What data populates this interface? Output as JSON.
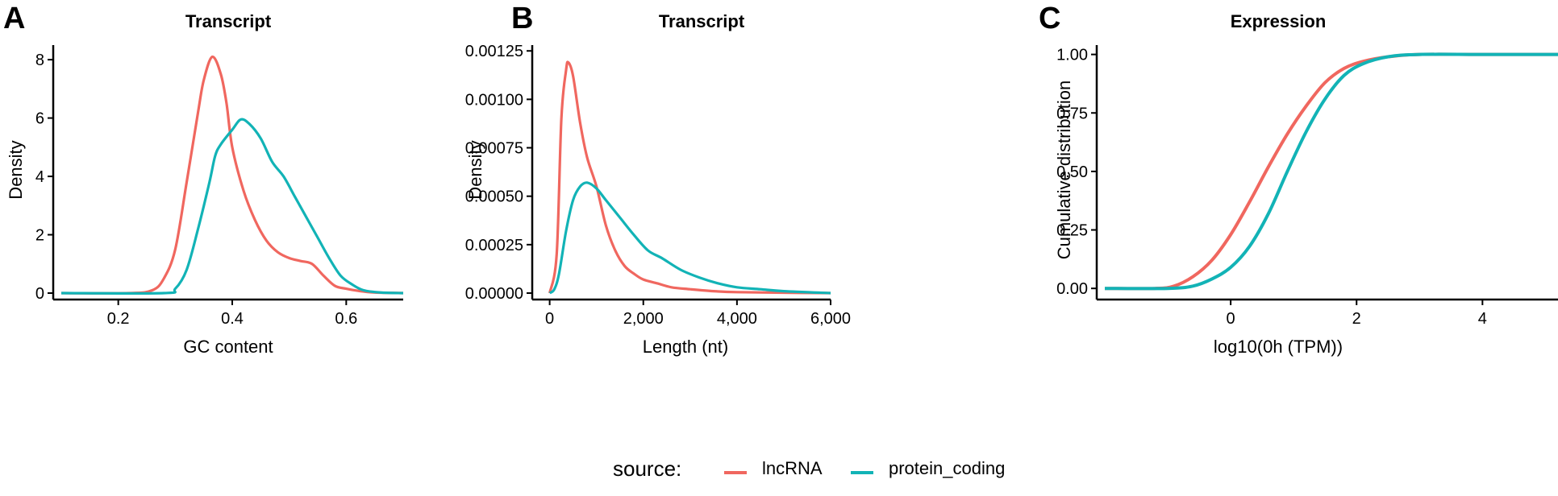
{
  "colors": {
    "lncRNA": "#F0675F",
    "protein_coding": "#12B3B6",
    "axis": "#000000"
  },
  "panels": [
    {
      "letter": "A",
      "title": "Transcript",
      "xlabel": "GC content",
      "ylabel": "Density",
      "xticks": [
        "0.2",
        "0.4",
        "0.6"
      ],
      "yticks": [
        "0",
        "2",
        "4",
        "6",
        "8"
      ]
    },
    {
      "letter": "B",
      "title": "Transcript",
      "xlabel": "Length (nt)",
      "ylabel": "Density",
      "xticks": [
        "0",
        "2,000",
        "4,000",
        "6,000"
      ],
      "yticks": [
        "0.00000",
        "0.00025",
        "0.00050",
        "0.00075",
        "0.00100",
        "0.00125"
      ]
    },
    {
      "letter": "C",
      "title": "Expression",
      "xlabel": "log10(0h (TPM))",
      "ylabel": "Cumulative distribution",
      "xticks": [
        "0",
        "2",
        "4"
      ],
      "yticks": [
        "0.00",
        "0.25",
        "0.50",
        "0.75",
        "1.00"
      ]
    }
  ],
  "legend": {
    "title": "source:",
    "items": [
      {
        "label": "lncRNA"
      },
      {
        "label": "protein_coding"
      }
    ]
  },
  "chart_data": [
    {
      "type": "line",
      "title": "Transcript",
      "xlabel": "GC content",
      "ylabel": "Density",
      "xlim": [
        0.1,
        0.7
      ],
      "ylim": [
        0,
        8.5
      ],
      "xticks": [
        0.2,
        0.4,
        0.6
      ],
      "yticks": [
        0,
        2,
        4,
        6,
        8
      ],
      "grid": false,
      "legend_position": "bottom",
      "series": [
        {
          "name": "lncRNA",
          "x": [
            0.1,
            0.22,
            0.26,
            0.28,
            0.3,
            0.32,
            0.34,
            0.35,
            0.365,
            0.38,
            0.39,
            0.4,
            0.42,
            0.44,
            0.46,
            0.48,
            0.5,
            0.52,
            0.54,
            0.56,
            0.58,
            0.6,
            0.62,
            0.65,
            0.7
          ],
          "y": [
            0,
            0,
            0.1,
            0.5,
            1.5,
            3.8,
            6.2,
            7.3,
            8.1,
            7.5,
            6.5,
            5.0,
            3.5,
            2.5,
            1.8,
            1.4,
            1.2,
            1.1,
            1.0,
            0.6,
            0.25,
            0.15,
            0.08,
            0.02,
            0
          ]
        },
        {
          "name": "protein_coding",
          "x": [
            0.1,
            0.28,
            0.3,
            0.32,
            0.34,
            0.36,
            0.37,
            0.38,
            0.4,
            0.415,
            0.43,
            0.45,
            0.47,
            0.49,
            0.51,
            0.53,
            0.55,
            0.57,
            0.59,
            0.61,
            0.63,
            0.66,
            0.7
          ],
          "y": [
            0,
            0,
            0.15,
            0.8,
            2.2,
            3.8,
            4.7,
            5.1,
            5.6,
            5.95,
            5.8,
            5.3,
            4.5,
            4.0,
            3.3,
            2.6,
            1.9,
            1.2,
            0.6,
            0.3,
            0.1,
            0.02,
            0
          ]
        }
      ]
    },
    {
      "type": "line",
      "title": "Transcript",
      "xlabel": "Length (nt)",
      "ylabel": "Density",
      "xlim": [
        -200,
        6000
      ],
      "ylim": [
        0,
        0.00128
      ],
      "xticks": [
        0,
        2000,
        4000,
        6000
      ],
      "yticks": [
        0,
        0.00025,
        0.0005,
        0.00075,
        0.001,
        0.00125
      ],
      "grid": false,
      "legend_position": "bottom",
      "series": [
        {
          "name": "lncRNA",
          "x": [
            0,
            150,
            250,
            350,
            400,
            500,
            650,
            800,
            1000,
            1200,
            1400,
            1600,
            1800,
            2000,
            2300,
            2600,
            3000,
            3500,
            4000,
            5000,
            6000
          ],
          "y": [
            0,
            0.0002,
            0.0009,
            0.00115,
            0.00119,
            0.00112,
            0.00088,
            0.0007,
            0.00055,
            0.00035,
            0.00022,
            0.00014,
            0.0001,
            7e-05,
            5e-05,
            3e-05,
            2e-05,
            1e-05,
            5e-06,
            2e-06,
            0
          ]
        },
        {
          "name": "protein_coding",
          "x": [
            0,
            100,
            200,
            350,
            500,
            650,
            800,
            1000,
            1200,
            1500,
            1800,
            2100,
            2400,
            2800,
            3200,
            3600,
            4000,
            4500,
            5000,
            6000
          ],
          "y": [
            0,
            2e-05,
            0.0001,
            0.00032,
            0.00048,
            0.00055,
            0.00057,
            0.00054,
            0.00048,
            0.00039,
            0.0003,
            0.00022,
            0.00018,
            0.00012,
            8e-05,
            5e-05,
            3e-05,
            2e-05,
            1e-05,
            0
          ]
        }
      ]
    },
    {
      "type": "line",
      "title": "Expression",
      "xlabel": "log10(0h (TPM))",
      "ylabel": "Cumulative distribution",
      "xlim": [
        -2,
        5.2
      ],
      "ylim": [
        -0.02,
        1.04
      ],
      "xticks": [
        0,
        2,
        4
      ],
      "yticks": [
        0,
        0.25,
        0.5,
        0.75,
        1.0
      ],
      "grid": false,
      "legend_position": "bottom",
      "series": [
        {
          "name": "lncRNA",
          "x": [
            -2,
            -1.2,
            -0.9,
            -0.6,
            -0.3,
            0,
            0.3,
            0.6,
            0.9,
            1.2,
            1.5,
            1.8,
            2.1,
            2.5,
            3.0,
            4.0,
            5.2
          ],
          "y": [
            0,
            0,
            0.01,
            0.05,
            0.12,
            0.23,
            0.37,
            0.52,
            0.66,
            0.78,
            0.88,
            0.94,
            0.97,
            0.99,
            1.0,
            1.0,
            1.0
          ]
        },
        {
          "name": "protein_coding",
          "x": [
            -2,
            -1.0,
            -0.6,
            -0.3,
            0,
            0.3,
            0.6,
            0.9,
            1.2,
            1.5,
            1.8,
            2.1,
            2.5,
            3.0,
            4.0,
            5.2
          ],
          "y": [
            0,
            0,
            0.01,
            0.04,
            0.09,
            0.18,
            0.32,
            0.5,
            0.67,
            0.81,
            0.91,
            0.96,
            0.99,
            1.0,
            1.0,
            1.0
          ]
        }
      ]
    }
  ]
}
